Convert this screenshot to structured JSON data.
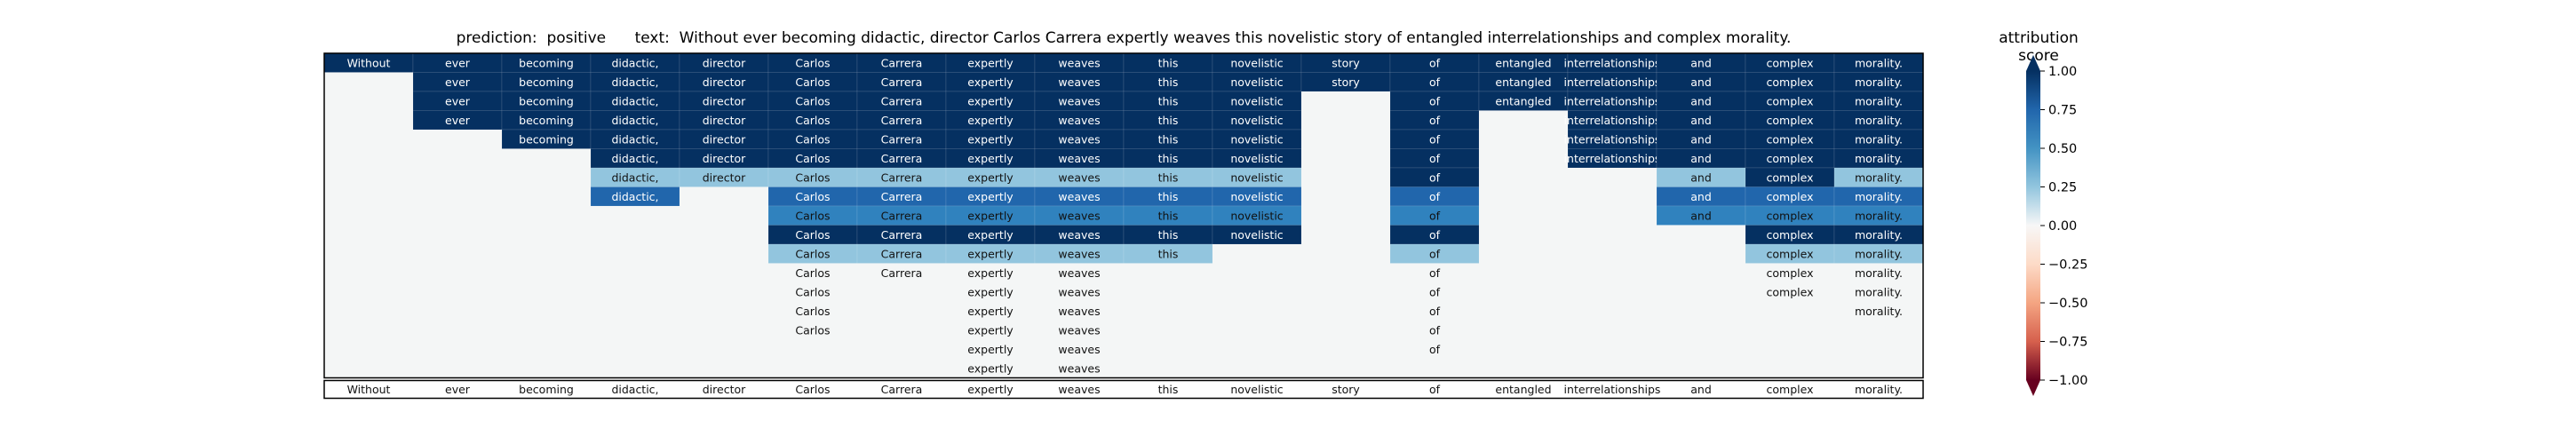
{
  "header": {
    "prediction_key": "prediction:",
    "prediction_value": "positive",
    "text_key": "text:",
    "text_value": "Without ever becoming didactic, director Carlos Carrera expertly weaves this novelistic story of entangled interrelationships and complex morality."
  },
  "colorbar": {
    "label": "attribution score",
    "ticks": [
      "1.00",
      "0.75",
      "0.50",
      "0.25",
      "0.00",
      "−0.25",
      "−0.50",
      "−0.75",
      "−1.00"
    ],
    "range": [
      -1,
      1
    ],
    "colormap": "RdBu"
  },
  "chart_data": {
    "type": "heatmap",
    "tokens": [
      "Without",
      "ever",
      "becoming",
      "didactic,",
      "director",
      "Carlos",
      "Carrera",
      "expertly",
      "weaves",
      "this",
      "novelistic",
      "story",
      "of",
      "entangled",
      "interrelationships",
      "and",
      "complex",
      "morality."
    ],
    "rows": [
      [
        1,
        1,
        1,
        1,
        1,
        1,
        1,
        1,
        1,
        1,
        1,
        1,
        1,
        1,
        1,
        1,
        1,
        1
      ],
      [
        null,
        1,
        1,
        1,
        1,
        1,
        1,
        1,
        1,
        1,
        1,
        1,
        1,
        1,
        1,
        1,
        1,
        1
      ],
      [
        null,
        1,
        1,
        1,
        1,
        1,
        1,
        1,
        1,
        1,
        1,
        null,
        1,
        1,
        1,
        1,
        1,
        1
      ],
      [
        null,
        1,
        1,
        1,
        1,
        1,
        1,
        1,
        1,
        1,
        1,
        null,
        1,
        null,
        1,
        1,
        1,
        1
      ],
      [
        null,
        null,
        1,
        1,
        1,
        1,
        1,
        1,
        1,
        1,
        1,
        null,
        1,
        null,
        1,
        1,
        1,
        1
      ],
      [
        null,
        null,
        null,
        1,
        1,
        1,
        1,
        1,
        1,
        1,
        1,
        null,
        1,
        null,
        1,
        1,
        1,
        1
      ],
      [
        null,
        null,
        null,
        0.45,
        0.45,
        0.45,
        0.45,
        0.45,
        0.45,
        0.45,
        0.45,
        null,
        1,
        null,
        null,
        0.45,
        1,
        0.45
      ],
      [
        null,
        null,
        null,
        0.85,
        null,
        0.85,
        0.85,
        0.85,
        0.85,
        0.85,
        0.85,
        null,
        0.85,
        null,
        null,
        0.85,
        0.85,
        0.85
      ],
      [
        null,
        null,
        null,
        null,
        null,
        0.72,
        0.72,
        0.72,
        0.72,
        0.72,
        0.72,
        null,
        0.72,
        null,
        null,
        0.72,
        0.72,
        0.72
      ],
      [
        null,
        null,
        null,
        null,
        null,
        1,
        1,
        1,
        1,
        1,
        1,
        null,
        1,
        null,
        null,
        null,
        1,
        1
      ],
      [
        null,
        null,
        null,
        null,
        null,
        0.45,
        0.45,
        0.45,
        0.45,
        0.45,
        null,
        null,
        0.45,
        null,
        null,
        null,
        0.45,
        0.45
      ],
      [
        null,
        null,
        null,
        null,
        null,
        0,
        0,
        0,
        0,
        null,
        null,
        null,
        0,
        null,
        null,
        null,
        0,
        0
      ],
      [
        null,
        null,
        null,
        null,
        null,
        0,
        null,
        0,
        0,
        null,
        null,
        null,
        0,
        null,
        null,
        null,
        0,
        0
      ],
      [
        null,
        null,
        null,
        null,
        null,
        0,
        null,
        0,
        0,
        null,
        null,
        null,
        0,
        null,
        null,
        null,
        null,
        0
      ],
      [
        null,
        null,
        null,
        null,
        null,
        0,
        null,
        0,
        0,
        null,
        null,
        null,
        0,
        null,
        null,
        null,
        null,
        null
      ],
      [
        null,
        null,
        null,
        null,
        null,
        null,
        null,
        0,
        0,
        null,
        null,
        null,
        0,
        null,
        null,
        null,
        null,
        null
      ],
      [
        null,
        null,
        null,
        null,
        null,
        null,
        null,
        0,
        0,
        null,
        null,
        null,
        null,
        null,
        null,
        null,
        null,
        null
      ]
    ]
  }
}
